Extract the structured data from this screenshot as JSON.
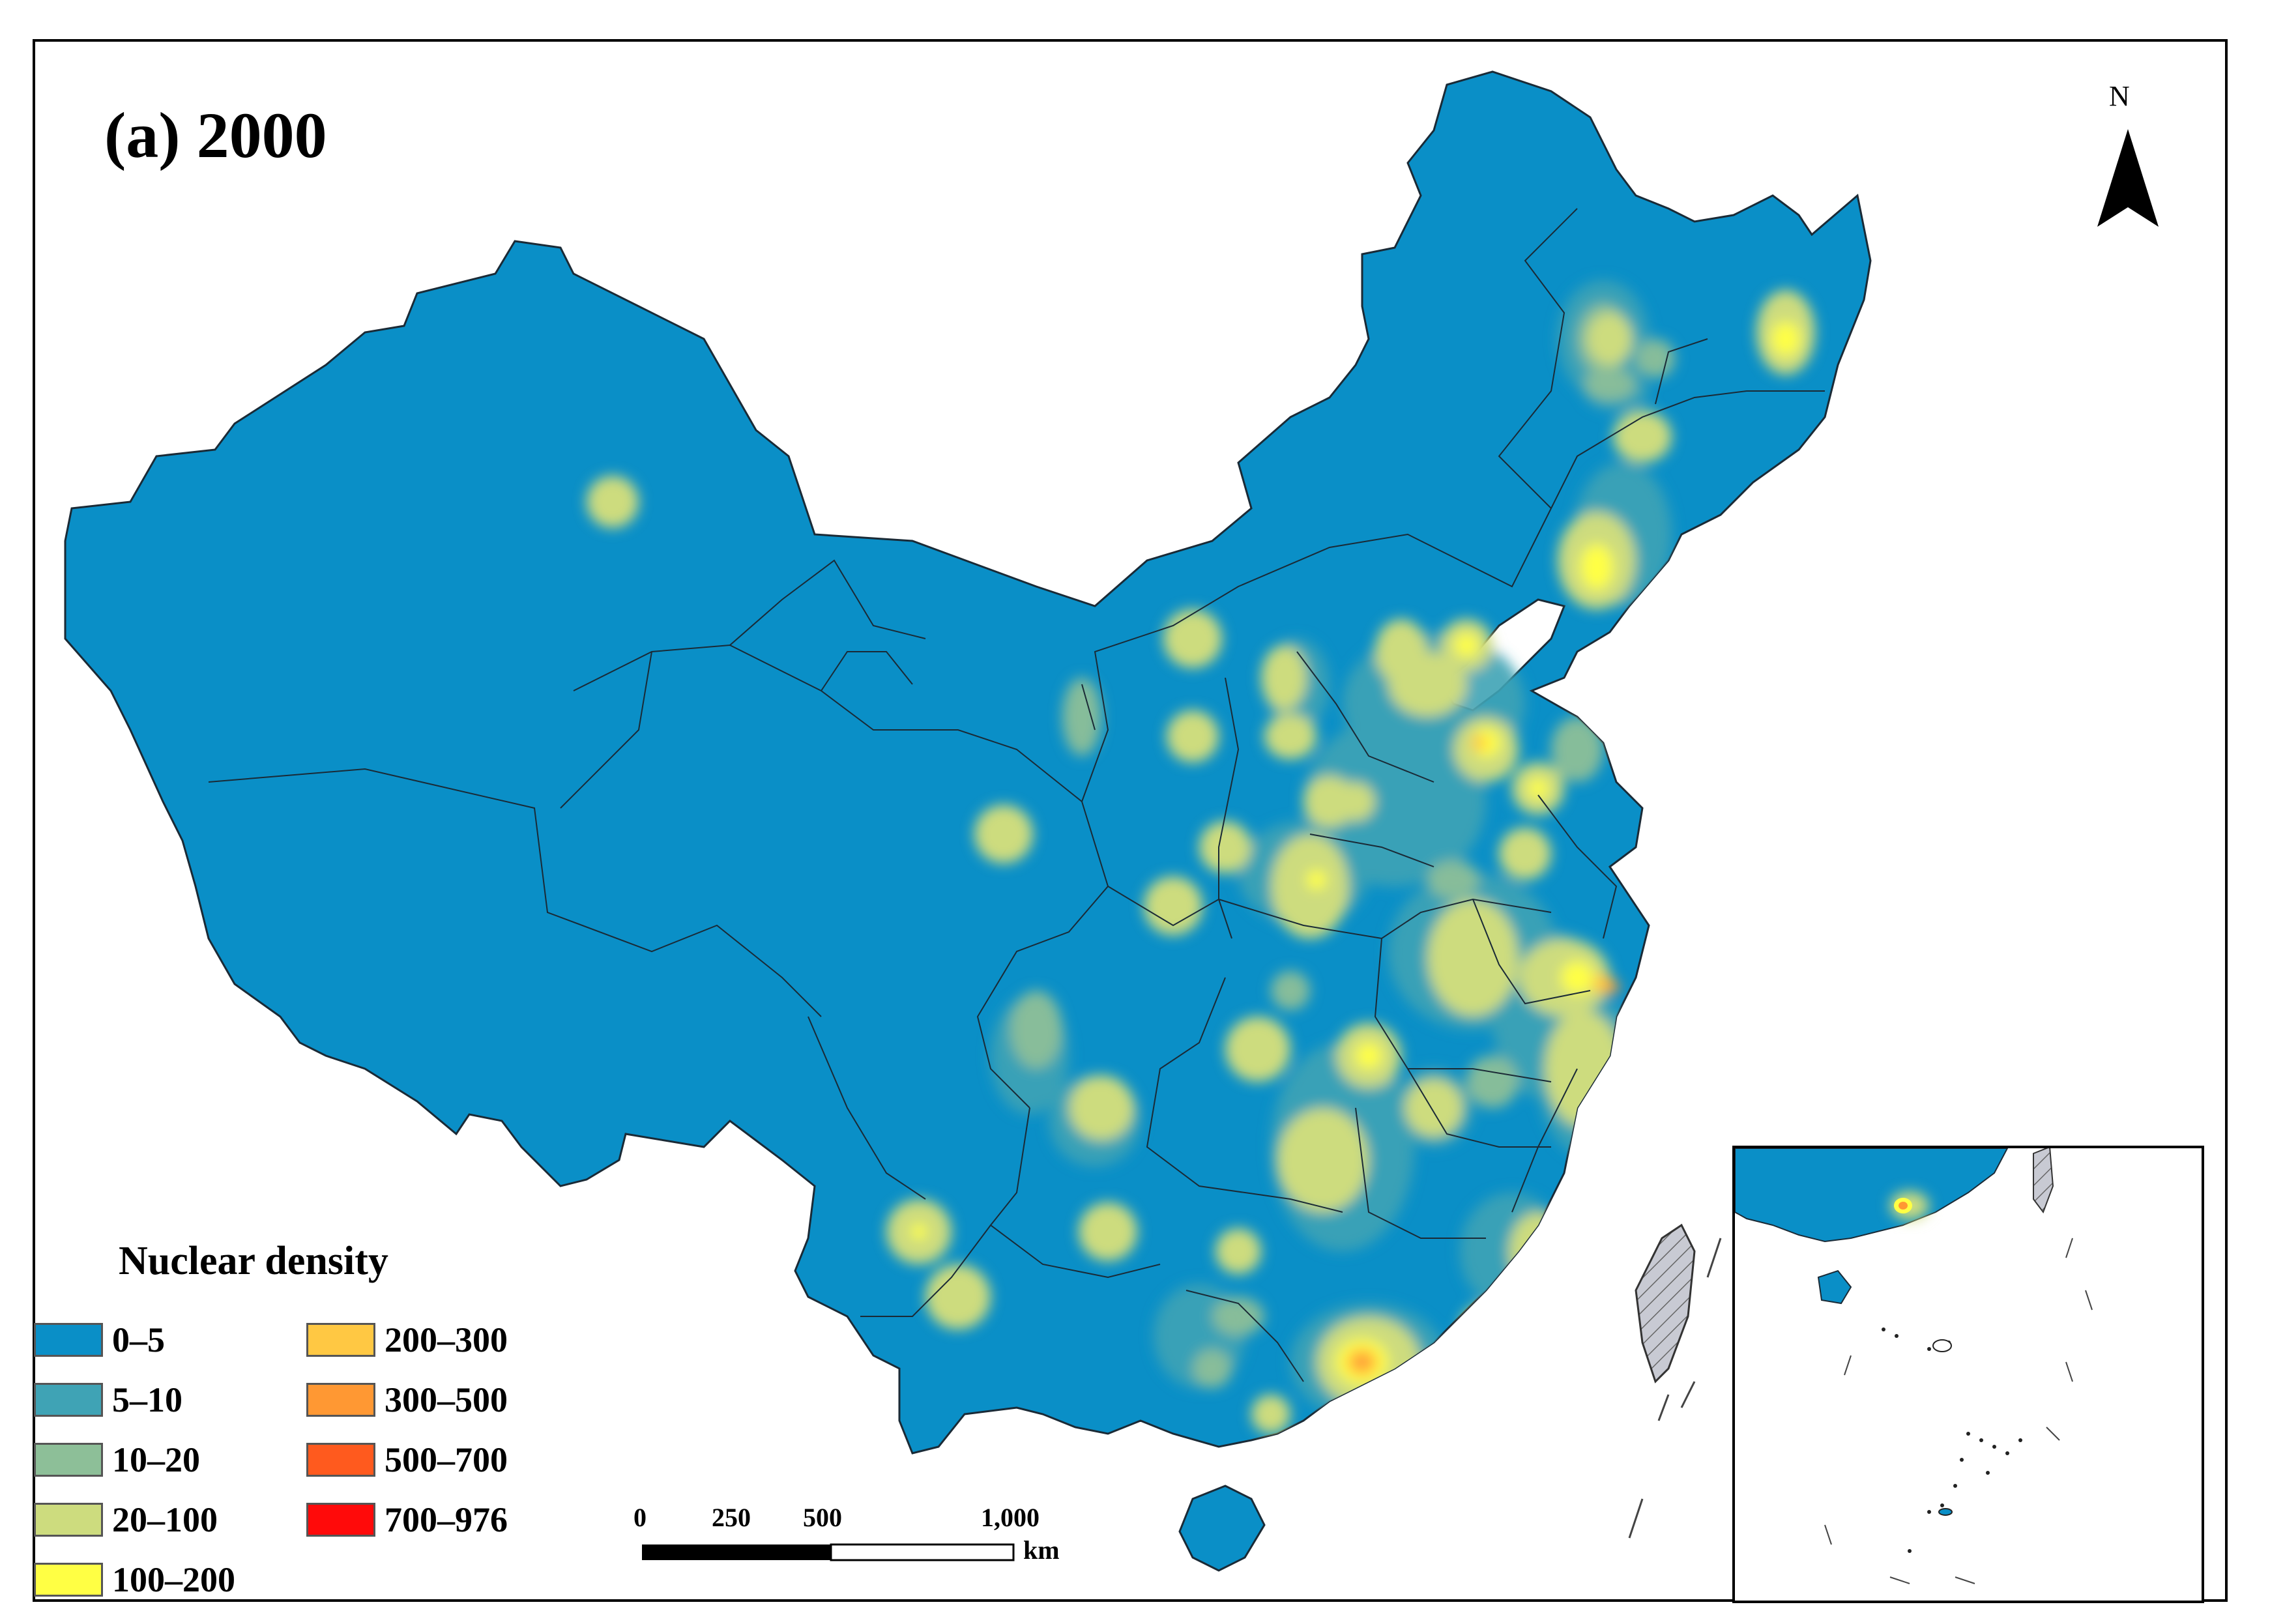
{
  "title": "(a) 2000",
  "north_arrow": {
    "label": "N",
    "icon": "north-arrow-icon"
  },
  "legend": {
    "title": "Nuclear density",
    "classes": [
      {
        "label": "0–5",
        "color": "#0A8FC7"
      },
      {
        "label": "5–10",
        "color": "#3FA3B5"
      },
      {
        "label": "10–20",
        "color": "#8DBF98"
      },
      {
        "label": "20–100",
        "color": "#CDDC7E"
      },
      {
        "label": "100–200",
        "color": "#FFFF44"
      },
      {
        "label": "200–300",
        "color": "#FFC843"
      },
      {
        "label": "300–500",
        "color": "#FF9833"
      },
      {
        "label": "500–700",
        "color": "#FF5A1E"
      },
      {
        "label": "700–976",
        "color": "#FF0A0A"
      }
    ]
  },
  "scale_bar": {
    "ticks": [
      "0",
      "250",
      "500",
      "1,000"
    ],
    "unit": "km"
  },
  "colors": {
    "base_fill": "#0A8FC7",
    "boundary": "#1a2a36",
    "taiwan_hatch": "#b9bcc6"
  }
}
